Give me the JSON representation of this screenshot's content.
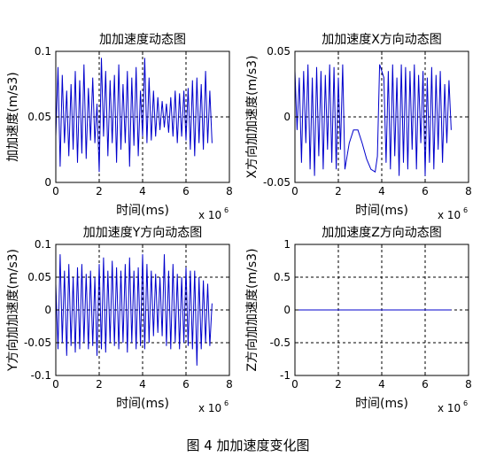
{
  "caption": "图 4  加加速度变化图",
  "chart_data": [
    {
      "id": "jerk",
      "type": "line",
      "title": "加加速度动态图",
      "xlabel": "时间(ms)",
      "ylabel": "加加速度(m/s3)",
      "x_multiplier_label": "x 10",
      "x_multiplier_exp": "6",
      "xlim": [
        0,
        8
      ],
      "ylim": [
        0,
        0.1
      ],
      "xticks": [
        0,
        2,
        4,
        6,
        8
      ],
      "xtick_labels": [
        "0",
        "2",
        "4",
        "6",
        "8"
      ],
      "yticks": [
        0,
        0.05,
        0.1
      ],
      "ytick_labels": [
        "0",
        "0.05",
        "0.1"
      ],
      "grid": true,
      "line_color": "#0000cc",
      "series": [
        {
          "x": [
            0.0,
            0.1,
            0.2,
            0.3,
            0.4,
            0.5,
            0.6,
            0.7,
            0.8,
            0.9,
            1.0,
            1.1,
            1.2,
            1.3,
            1.4,
            1.5,
            1.6,
            1.7,
            1.8,
            1.9,
            2.0,
            2.1,
            2.2,
            2.3,
            2.4,
            2.5,
            2.6,
            2.7,
            2.8,
            2.9,
            3.0,
            3.1,
            3.2,
            3.3,
            3.4,
            3.5,
            3.6,
            3.7,
            3.8,
            3.9,
            4.0,
            4.1,
            4.2,
            4.3,
            4.4,
            4.5,
            4.6,
            4.7,
            4.8,
            4.9,
            5.0,
            5.1,
            5.2,
            5.3,
            5.4,
            5.5,
            5.6,
            5.7,
            5.8,
            5.9,
            6.0,
            6.1,
            6.2,
            6.3,
            6.4,
            6.5,
            6.6,
            6.7,
            6.8,
            6.9,
            7.0,
            7.1,
            7.2
          ],
          "y": [
            0.035,
            0.088,
            0.012,
            0.082,
            0.03,
            0.07,
            0.02,
            0.075,
            0.025,
            0.085,
            0.015,
            0.078,
            0.022,
            0.09,
            0.018,
            0.072,
            0.032,
            0.08,
            0.03,
            0.06,
            0.008,
            0.095,
            0.035,
            0.085,
            0.02,
            0.078,
            0.03,
            0.082,
            0.015,
            0.09,
            0.025,
            0.075,
            0.03,
            0.085,
            0.012,
            0.08,
            0.028,
            0.088,
            0.02,
            0.07,
            0.035,
            0.095,
            0.03,
            0.08,
            0.032,
            0.07,
            0.035,
            0.065,
            0.04,
            0.062,
            0.042,
            0.06,
            0.038,
            0.065,
            0.035,
            0.07,
            0.03,
            0.068,
            0.035,
            0.07,
            0.032,
            0.072,
            0.025,
            0.078,
            0.02,
            0.08,
            0.03,
            0.075,
            0.025,
            0.085,
            0.03,
            0.07,
            0.03
          ]
        }
      ]
    },
    {
      "id": "jerk_x",
      "type": "line",
      "title": "加加速度X方向动态图",
      "xlabel": "时间(ms)",
      "ylabel": "X方向加加速度(m/s3)",
      "x_multiplier_label": "x 10",
      "x_multiplier_exp": "6",
      "xlim": [
        0,
        8
      ],
      "ylim": [
        -0.05,
        0.05
      ],
      "xticks": [
        0,
        2,
        4,
        6,
        8
      ],
      "xtick_labels": [
        "0",
        "2",
        "4",
        "6",
        "8"
      ],
      "yticks": [
        -0.05,
        0,
        0.05
      ],
      "ytick_labels": [
        "-0.05",
        "0",
        "0.05"
      ],
      "grid": true,
      "line_color": "#0000cc",
      "series": [
        {
          "x": [
            0.0,
            0.1,
            0.2,
            0.3,
            0.4,
            0.5,
            0.6,
            0.7,
            0.8,
            0.9,
            1.0,
            1.1,
            1.2,
            1.3,
            1.4,
            1.5,
            1.6,
            1.7,
            1.8,
            1.9,
            2.0,
            2.1,
            2.2,
            2.3,
            2.5,
            2.7,
            2.9,
            3.1,
            3.3,
            3.5,
            3.7,
            3.8,
            3.9,
            4.0,
            4.1,
            4.2,
            4.3,
            4.4,
            4.5,
            4.6,
            4.7,
            4.8,
            4.9,
            5.0,
            5.1,
            5.2,
            5.3,
            5.4,
            5.5,
            5.6,
            5.7,
            5.8,
            5.9,
            6.0,
            6.1,
            6.2,
            6.3,
            6.4,
            6.5,
            6.6,
            6.7,
            6.8,
            6.9,
            7.0,
            7.1,
            7.2
          ],
          "y": [
            0.035,
            -0.01,
            0.03,
            -0.035,
            0.035,
            -0.02,
            0.04,
            -0.04,
            0.03,
            -0.045,
            0.038,
            -0.03,
            0.035,
            -0.04,
            0.032,
            -0.025,
            0.04,
            -0.035,
            0.038,
            -0.04,
            0.03,
            -0.025,
            0.04,
            -0.04,
            -0.02,
            -0.01,
            -0.01,
            -0.02,
            -0.032,
            -0.04,
            -0.042,
            -0.03,
            0.04,
            0.035,
            0.03,
            -0.035,
            0.035,
            -0.04,
            0.04,
            -0.03,
            0.03,
            -0.045,
            0.04,
            -0.035,
            0.038,
            -0.04,
            0.035,
            -0.025,
            0.04,
            -0.04,
            0.032,
            -0.02,
            0.035,
            -0.045,
            0.03,
            -0.035,
            0.038,
            -0.04,
            0.032,
            -0.025,
            0.035,
            -0.035,
            0.025,
            -0.02,
            0.028,
            -0.01
          ]
        }
      ]
    },
    {
      "id": "jerk_y",
      "type": "line",
      "title": "加加速度Y方向动态图",
      "xlabel": "时间(ms)",
      "ylabel": "Y方向加加速度(m/s3)",
      "x_multiplier_label": "x 10",
      "x_multiplier_exp": "6",
      "xlim": [
        0,
        8
      ],
      "ylim": [
        -0.1,
        0.1
      ],
      "xticks": [
        0,
        2,
        4,
        6,
        8
      ],
      "xtick_labels": [
        "0",
        "2",
        "4",
        "6",
        "8"
      ],
      "yticks": [
        -0.1,
        -0.05,
        0,
        0.05,
        0.1
      ],
      "ytick_labels": [
        "-0.1",
        "-0.05",
        "0",
        "0.05",
        "0.1"
      ],
      "grid": true,
      "line_color": "#0000cc",
      "series": [
        {
          "x": [
            0.0,
            0.1,
            0.2,
            0.3,
            0.4,
            0.5,
            0.6,
            0.7,
            0.8,
            0.9,
            1.0,
            1.1,
            1.2,
            1.3,
            1.4,
            1.5,
            1.6,
            1.7,
            1.8,
            1.9,
            2.0,
            2.1,
            2.2,
            2.3,
            2.4,
            2.5,
            2.6,
            2.7,
            2.8,
            2.9,
            3.0,
            3.1,
            3.2,
            3.3,
            3.4,
            3.5,
            3.6,
            3.7,
            3.8,
            3.9,
            4.0,
            4.1,
            4.2,
            4.3,
            4.4,
            4.5,
            4.6,
            4.7,
            4.8,
            4.9,
            5.0,
            5.1,
            5.2,
            5.3,
            5.4,
            5.5,
            5.6,
            5.7,
            5.8,
            5.9,
            6.0,
            6.1,
            6.2,
            6.3,
            6.4,
            6.5,
            6.6,
            6.7,
            6.8,
            6.9,
            7.0,
            7.1,
            7.2
          ],
          "y": [
            0.04,
            -0.06,
            0.085,
            -0.05,
            0.06,
            -0.07,
            0.07,
            -0.055,
            0.05,
            -0.065,
            0.065,
            -0.06,
            0.07,
            -0.05,
            0.055,
            -0.06,
            0.06,
            -0.055,
            0.05,
            -0.07,
            0.07,
            -0.06,
            0.08,
            -0.065,
            0.06,
            -0.05,
            0.075,
            -0.055,
            0.065,
            -0.06,
            0.06,
            -0.05,
            0.07,
            -0.065,
            0.08,
            -0.05,
            0.06,
            -0.06,
            0.065,
            -0.055,
            0.085,
            -0.06,
            0.07,
            -0.05,
            0.06,
            -0.04,
            0.055,
            -0.035,
            0.05,
            -0.04,
            0.085,
            -0.055,
            0.06,
            -0.06,
            0.07,
            -0.05,
            0.055,
            -0.06,
            0.05,
            -0.05,
            0.065,
            -0.055,
            0.06,
            -0.06,
            0.06,
            -0.085,
            0.05,
            -0.06,
            0.045,
            -0.05,
            0.04,
            -0.055,
            0.01
          ]
        }
      ]
    },
    {
      "id": "jerk_z",
      "type": "line",
      "title": "加加速度Z方向动态图",
      "xlabel": "时间(ms)",
      "ylabel": "Z方向加加速度(m/s3)",
      "x_multiplier_label": "x 10",
      "x_multiplier_exp": "6",
      "xlim": [
        0,
        8
      ],
      "ylim": [
        -1,
        1
      ],
      "xticks": [
        0,
        2,
        4,
        6,
        8
      ],
      "xtick_labels": [
        "0",
        "2",
        "4",
        "6",
        "8"
      ],
      "yticks": [
        -1,
        -0.5,
        0,
        0.5,
        1
      ],
      "ytick_labels": [
        "-1",
        "-0.5",
        "0",
        "0.5",
        "1"
      ],
      "grid": true,
      "line_color": "#0000cc",
      "series": [
        {
          "x": [
            0,
            7.2
          ],
          "y": [
            0,
            0
          ]
        }
      ]
    }
  ]
}
